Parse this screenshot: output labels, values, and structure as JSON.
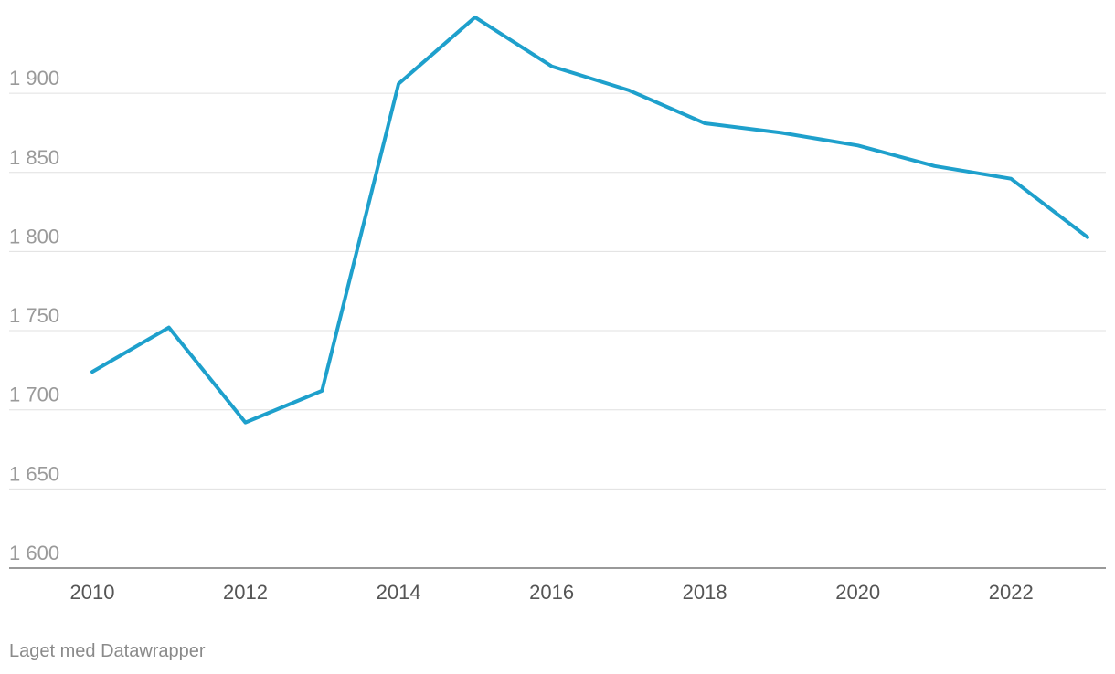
{
  "credit": "Laget med Datawrapper",
  "colors": {
    "line": "#1ea0cc",
    "grid": "#e0e0e0",
    "tick_text": "#9a9a9a",
    "x_tick_text": "#555555"
  },
  "chart_data": {
    "type": "line",
    "title": "",
    "xlabel": "",
    "ylabel": "",
    "x": [
      2010,
      2011,
      2012,
      2013,
      2014,
      2015,
      2016,
      2017,
      2018,
      2019,
      2020,
      2021,
      2022,
      2023
    ],
    "series": [
      {
        "values": [
          1724,
          1752,
          1692,
          1712,
          1906,
          1948,
          1917,
          1902,
          1881,
          1875,
          1867,
          1854,
          1846,
          1809
        ]
      }
    ],
    "xlim": [
      2010,
      2023
    ],
    "ylim": [
      1600,
      1950
    ],
    "y_ticks": [
      1600,
      1650,
      1700,
      1750,
      1800,
      1850,
      1900
    ],
    "y_tick_labels": [
      "1 600",
      "1 650",
      "1 700",
      "1 750",
      "1 800",
      "1 850",
      "1 900"
    ],
    "x_ticks": [
      2010,
      2012,
      2014,
      2016,
      2018,
      2020,
      2022
    ],
    "x_tick_labels": [
      "2010",
      "2012",
      "2014",
      "2016",
      "2018",
      "2020",
      "2022"
    ],
    "grid": true,
    "legend": "none"
  }
}
